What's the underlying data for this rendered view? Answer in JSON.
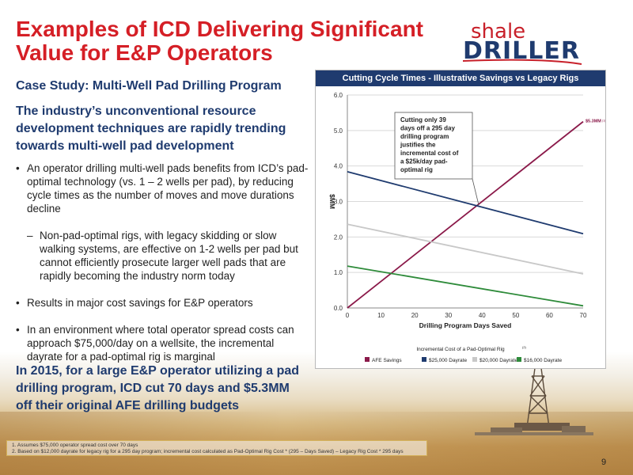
{
  "slide": {
    "title_line1": "Examples of ICD Delivering Significant",
    "title_line2": "Value for E&P Operators",
    "logo_top": "shale",
    "logo_bottom": "DRILLER",
    "subtitle": "Case Study: Multi-Well Pad Drilling Program",
    "lead": "The industry’s unconventional resource development techniques are rapidly trending towards multi-well pad development",
    "bullets": [
      "An operator drilling multi-well pads benefits from ICD’s pad-optimal technology (vs. 1 – 2 wells per pad), by reducing cycle times as the number of moves and move durations decline",
      "Non-pad-optimal rigs, with legacy skidding or slow walking systems, are effective on 1-2 wells per pad but cannot efficiently prosecute larger well pads that are rapidly becoming the industry norm today",
      "Results in major cost savings for E&P operators",
      "In an environment where total operator spread costs can approach $75,000/day on a wellsite, the incremental dayrate for a pad-optimal rig is marginal"
    ],
    "conclusion": "In 2015, for a large E&P operator utilizing a pad drilling program, ICD cut 70 days and $5.3MM off their original AFE drilling budgets",
    "footnote1": "1.  Assumes $75,000 operator spread cost over 70 days",
    "footnote2": "2.  Based on $12,000 dayrate for legacy rig for a 295 day program; incremental cost calculated as Pad-Optimal Rig Cost * (295 – Days Saved) – Legacy Rig Cost * 295 days",
    "page_number": "9"
  },
  "chart_data": {
    "type": "line",
    "title": "Cutting Cycle Times - Illustrative Savings vs Legacy Rigs",
    "xlabel": "Drilling Program Days Saved",
    "ylabel": "$MM",
    "xlim": [
      0,
      70
    ],
    "ylim": [
      0,
      6
    ],
    "x_ticks": [
      "0",
      "10",
      "20",
      "30",
      "40",
      "50",
      "60",
      "70"
    ],
    "y_ticks": [
      "0.0",
      "1.0",
      "2.0",
      "3.0",
      "4.0",
      "5.0",
      "6.0"
    ],
    "grid": true,
    "x": [
      0,
      70
    ],
    "series": [
      {
        "name": "AFE Savings",
        "color": "#8b1a4a",
        "values": [
          0.0,
          5.25
        ]
      },
      {
        "name": "$25,000 Dayrate",
        "color": "#1f3b6f",
        "values": [
          3.84,
          2.09
        ]
      },
      {
        "name": "$20,000 Dayrate",
        "color": "#c8c8c8",
        "values": [
          2.36,
          0.96
        ]
      },
      {
        "name": "$16,000 Dayrate",
        "color": "#2e8b3a",
        "values": [
          1.18,
          0.06
        ]
      }
    ],
    "legend_title": "Incremental Cost of a Pad-Optimal Rig",
    "legend_title_sup": "(2)",
    "legend_position": "bottom",
    "annotations": {
      "end_label": "$5.3MM",
      "end_label_sup": "(1)",
      "callout": [
        "Cutting only 39",
        "days off a 295 day",
        "drilling program",
        "justifies the",
        "incremental cost of",
        "a $25k/day pad-",
        "optimal rig"
      ]
    }
  }
}
